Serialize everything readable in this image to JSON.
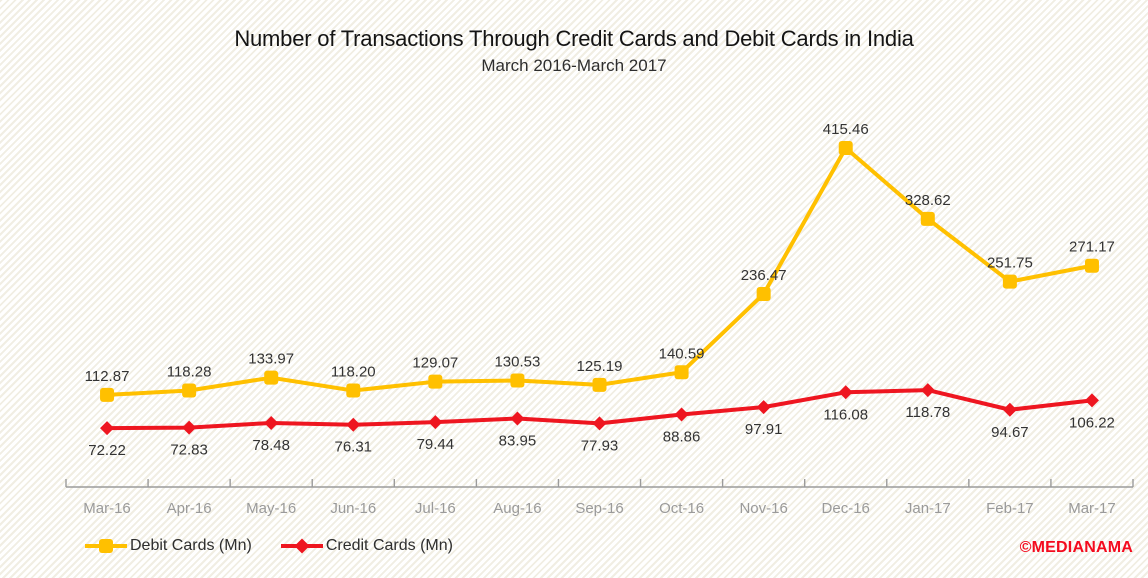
{
  "title": "Number of Transactions Through Credit Cards and Debit Cards in India",
  "subtitle": "March 2016-March 2017",
  "watermark": "©MEDIANAMA",
  "colors": {
    "debit": "#FFC000",
    "credit": "#EE1620",
    "axis_line": "#9b9b9b",
    "axis_label": "#9a9a9a",
    "data_label": "#333333",
    "title_text": "#141414",
    "watermark": "#F40B1E",
    "background_stripe": "#f1eee3"
  },
  "chart_data": {
    "type": "line",
    "title": "Number of Transactions Through Credit Cards and Debit Cards in India",
    "subtitle": "March 2016-March 2017",
    "xlabel": "",
    "ylabel": "",
    "ylim": [
      0,
      440
    ],
    "grid": false,
    "legend_position": "bottom-left",
    "categories": [
      "Mar-16",
      "Apr-16",
      "May-16",
      "Jun-16",
      "Jul-16",
      "Aug-16",
      "Sep-16",
      "Oct-16",
      "Nov-16",
      "Dec-16",
      "Jan-17",
      "Feb-17",
      "Mar-17"
    ],
    "series": [
      {
        "name": "Debit Cards (Mn)",
        "marker": "square",
        "color": "#FFC000",
        "label_position": "above",
        "values": [
          112.87,
          118.28,
          133.97,
          118.2,
          129.07,
          130.53,
          125.19,
          140.59,
          236.47,
          415.46,
          328.62,
          251.75,
          271.17
        ]
      },
      {
        "name": "Credit Cards (Mn)",
        "marker": "diamond",
        "color": "#EE1620",
        "label_position": "below",
        "values": [
          72.22,
          72.83,
          78.48,
          76.31,
          79.44,
          83.95,
          77.93,
          88.86,
          97.91,
          116.08,
          118.78,
          94.67,
          106.22
        ]
      }
    ]
  },
  "legend": {
    "items": [
      {
        "label": "Debit Cards (Mn)"
      },
      {
        "label": "Credit Cards (Mn)"
      }
    ]
  }
}
